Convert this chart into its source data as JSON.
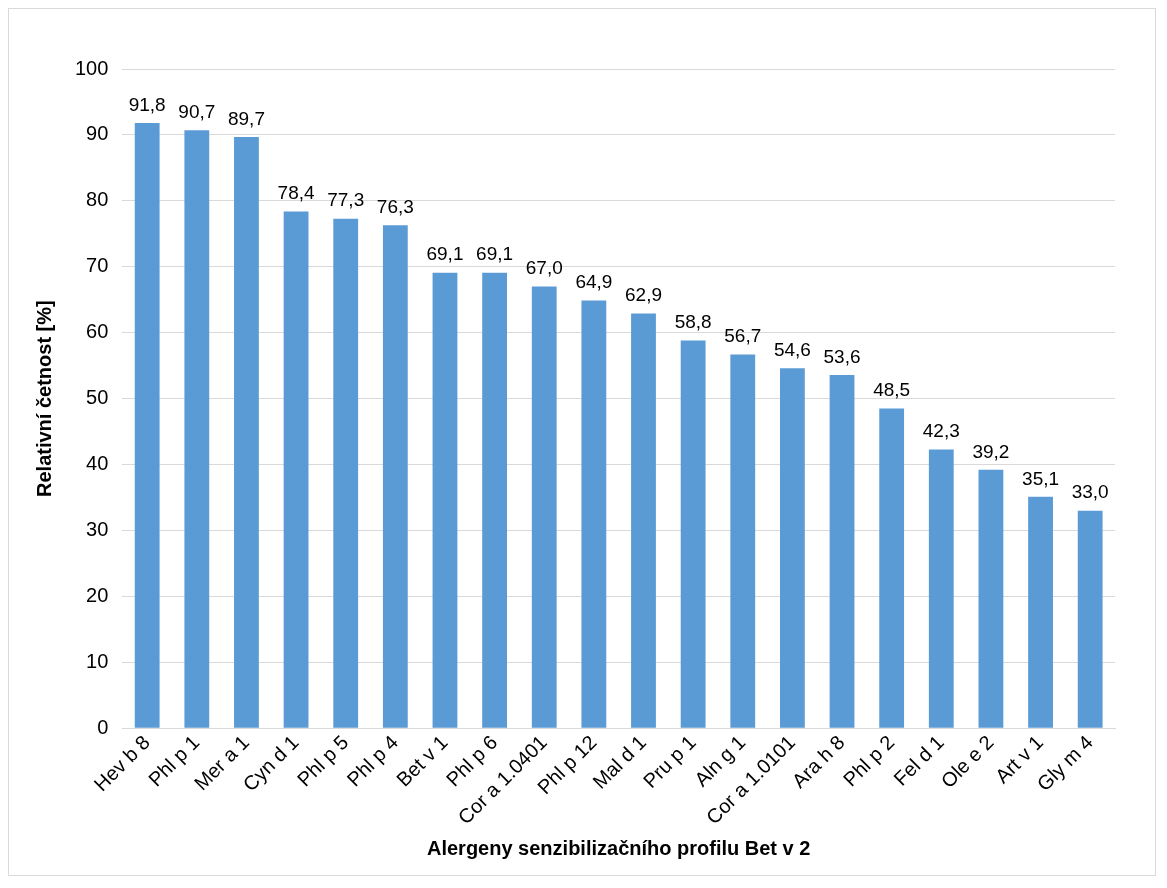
{
  "chart_data": {
    "type": "bar",
    "xlabel": "Alergeny senzibilizačního profilu Bet v 2",
    "ylabel": "Relativní četnost [%]",
    "categories": [
      "Hev b 8",
      "Phl p 1",
      "Mer a 1",
      "Cyn d 1",
      "Phl p 5",
      "Phl p 4",
      "Bet v 1",
      "Phl p 6",
      "Cor a 1.0401",
      "Phl p 12",
      "Mal d 1",
      "Pru p 1",
      "Aln g 1",
      "Cor a 1.0101",
      "Ara h 8",
      "Phl p 2",
      "Fel d 1",
      "Ole e 2",
      "Art v 1",
      "Gly m 4"
    ],
    "values": [
      91.8,
      90.7,
      89.7,
      78.4,
      77.3,
      76.3,
      69.1,
      69.1,
      67.0,
      64.9,
      62.9,
      58.8,
      56.7,
      54.6,
      53.6,
      48.5,
      42.3,
      39.2,
      35.1,
      33.0
    ],
    "value_labels": [
      "91,8",
      "90,7",
      "89,7",
      "78,4",
      "77,3",
      "76,3",
      "69,1",
      "69,1",
      "67,0",
      "64,9",
      "62,9",
      "58,8",
      "56,7",
      "54,6",
      "53,6",
      "48,5",
      "42,3",
      "39,2",
      "35,1",
      "33,0"
    ],
    "color": "#5b9bd5",
    "ylim": [
      0,
      100
    ],
    "yticks": [
      0,
      10,
      20,
      30,
      40,
      50,
      60,
      70,
      80,
      90,
      100
    ],
    "grid": "y",
    "legend": false
  }
}
